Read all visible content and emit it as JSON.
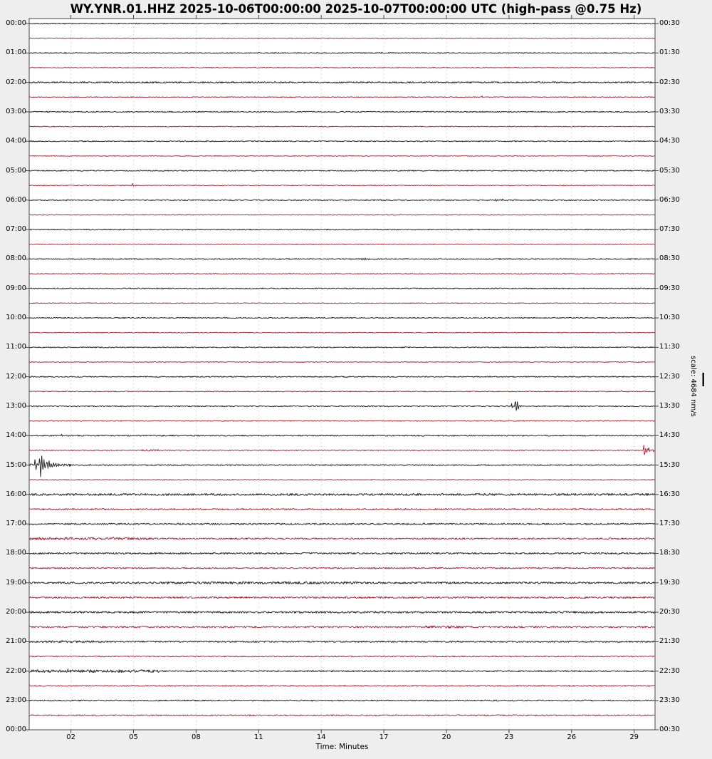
{
  "title": "WY.YNR.01.HHZ 2025-10-06T00:00:00 2025-10-07T00:00:00 UTC (high-pass @0.75 Hz)",
  "xlabel": "Time: Minutes",
  "scale_label": "scale: 4684 nm/s",
  "background": "#eeeeee",
  "plot_bg": "#ffffff",
  "border_color": "#454545",
  "grid_color": "#d4d4d4",
  "trace_colors": {
    "black": "#2a2a2a",
    "red": "#a12335"
  },
  "x_ticks": [
    "02",
    "05",
    "08",
    "11",
    "14",
    "17",
    "20",
    "23",
    "26",
    "29"
  ],
  "left_time_labels": [
    "00:00",
    "01:00",
    "02:00",
    "03:00",
    "04:00",
    "05:00",
    "06:00",
    "07:00",
    "08:00",
    "09:00",
    "10:00",
    "11:00",
    "12:00",
    "13:00",
    "14:00",
    "15:00",
    "16:00",
    "17:00",
    "18:00",
    "19:00",
    "20:00",
    "21:00",
    "22:00",
    "23:00",
    "00:00"
  ],
  "right_time_labels": [
    "00:30",
    "01:30",
    "02:30",
    "03:30",
    "04:30",
    "05:30",
    "06:30",
    "07:30",
    "08:30",
    "09:30",
    "10:30",
    "11:30",
    "12:30",
    "13:30",
    "14:30",
    "15:30",
    "16:30",
    "17:30",
    "18:30",
    "19:30",
    "20:30",
    "21:30",
    "22:30",
    "23:30",
    "00:30"
  ],
  "chart_data": {
    "type": "line",
    "kind": "helicorder-dayplot",
    "station": "WY.YNR.01.HHZ",
    "time_start": "2025-10-06T00:00:00",
    "time_end": "2025-10-07T00:00:00",
    "filter": "high-pass @0.75 Hz",
    "scale_nm_per_s": 4684,
    "minutes_per_line": 30,
    "x_range_minutes": [
      0,
      30
    ],
    "grid": "vertical-dashed",
    "rows": [
      {
        "start": "00:00",
        "color": "black",
        "noise": 0.7,
        "events": []
      },
      {
        "start": "00:30",
        "color": "red",
        "noise": 0.5,
        "events": []
      },
      {
        "start": "01:00",
        "color": "black",
        "noise": 0.7,
        "events": [
          {
            "t": 16.9,
            "a": 2.2
          }
        ]
      },
      {
        "start": "01:30",
        "color": "red",
        "noise": 0.55,
        "events": [
          {
            "t": 26.2,
            "a": 1.2
          }
        ]
      },
      {
        "start": "02:00",
        "color": "black",
        "noise": 1.0,
        "events": []
      },
      {
        "start": "02:30",
        "color": "red",
        "noise": 0.55,
        "events": [
          {
            "t": 21.7,
            "a": 2.2
          }
        ]
      },
      {
        "start": "03:00",
        "color": "black",
        "noise": 0.75,
        "events": []
      },
      {
        "start": "03:30",
        "color": "red",
        "noise": 0.6,
        "events": []
      },
      {
        "start": "04:00",
        "color": "black",
        "noise": 0.7,
        "events": []
      },
      {
        "start": "04:30",
        "color": "red",
        "noise": 0.5,
        "events": []
      },
      {
        "start": "05:00",
        "color": "black",
        "noise": 0.75,
        "events": [
          {
            "t": 28.6,
            "a": 1.6
          }
        ]
      },
      {
        "start": "05:30",
        "color": "red",
        "noise": 0.55,
        "events": [
          {
            "t": 4.95,
            "a": 5.5
          }
        ]
      },
      {
        "start": "06:00",
        "color": "black",
        "noise": 0.75,
        "events": [
          {
            "t": 22.35,
            "a": 4.5
          },
          {
            "t": 22.7,
            "a": 3.5
          }
        ]
      },
      {
        "start": "06:30",
        "color": "red",
        "noise": 0.55,
        "events": []
      },
      {
        "start": "07:00",
        "color": "black",
        "noise": 0.7,
        "events": []
      },
      {
        "start": "07:30",
        "color": "red",
        "noise": 0.55,
        "events": []
      },
      {
        "start": "08:00",
        "color": "black",
        "noise": 0.75,
        "events": [
          {
            "t": 5.3,
            "a": 1.2
          },
          {
            "t": 16.0,
            "a": 2.2,
            "r": 0.15,
            "d": 0.25
          }
        ]
      },
      {
        "start": "08:30",
        "color": "red",
        "noise": 0.55,
        "events": []
      },
      {
        "start": "09:00",
        "color": "black",
        "noise": 0.7,
        "events": []
      },
      {
        "start": "09:30",
        "color": "red",
        "noise": 0.55,
        "events": []
      },
      {
        "start": "10:00",
        "color": "black",
        "noise": 0.7,
        "events": []
      },
      {
        "start": "10:30",
        "color": "red",
        "noise": 0.55,
        "events": [
          {
            "t": 22.2,
            "a": 2.0
          },
          {
            "t": 22.65,
            "a": 1.6
          }
        ]
      },
      {
        "start": "11:00",
        "color": "black",
        "noise": 0.7,
        "events": []
      },
      {
        "start": "11:30",
        "color": "red",
        "noise": 0.55,
        "events": []
      },
      {
        "start": "12:00",
        "color": "black",
        "noise": 0.75,
        "events": []
      },
      {
        "start": "12:30",
        "color": "red",
        "noise": 0.6,
        "events": [
          {
            "t": 28.4,
            "a": 2.2
          }
        ]
      },
      {
        "start": "13:00",
        "color": "black",
        "noise": 0.75,
        "events": [
          {
            "t": 22.9,
            "a": 2.0
          },
          {
            "t": 23.12,
            "a": 5.0,
            "d": 0.06
          },
          {
            "t": 23.3,
            "a": 15.0,
            "d": 0.12
          }
        ]
      },
      {
        "start": "13:30",
        "color": "red",
        "noise": 0.6,
        "events": [
          {
            "t": 22.15,
            "a": 2.6
          }
        ]
      },
      {
        "start": "14:00",
        "color": "black",
        "noise": 0.8,
        "events": [
          {
            "t": 1.55,
            "a": 3.2
          }
        ]
      },
      {
        "start": "14:30",
        "color": "red",
        "noise": 0.6,
        "noise_spans": [
          [
            5.4,
            6.2,
            1.6
          ]
        ],
        "events": [
          {
            "t": 29.45,
            "a": 13.0,
            "d": 0.1
          },
          {
            "t": 29.7,
            "a": 6.0,
            "d": 0.05
          },
          {
            "t": 29.88,
            "a": 5.0,
            "d": 0.04
          }
        ]
      },
      {
        "start": "15:00",
        "color": "black",
        "noise": 0.8,
        "noise_spans": [
          [
            0,
            2,
            1.5
          ]
        ],
        "events": [
          {
            "t": 0.28,
            "a": 9.0,
            "d": 0.08
          },
          {
            "t": 0.5,
            "a": 20.0,
            "d": 0.18
          },
          {
            "t": 0.85,
            "a": 9.0,
            "d": 0.35
          }
        ]
      },
      {
        "start": "15:30",
        "color": "red",
        "noise": 0.6,
        "events": []
      },
      {
        "start": "16:00",
        "color": "black",
        "noise": 1.4,
        "events": []
      },
      {
        "start": "16:30",
        "color": "red",
        "noise": 1.0,
        "events": []
      },
      {
        "start": "17:00",
        "color": "black",
        "noise": 1.0,
        "events": []
      },
      {
        "start": "17:30",
        "color": "red",
        "noise": 1.1,
        "noise_spans": [
          [
            0,
            6,
            1.7
          ]
        ],
        "events": [
          {
            "t": 4.05,
            "a": 2.5
          }
        ]
      },
      {
        "start": "18:00",
        "color": "black",
        "noise": 1.1,
        "events": []
      },
      {
        "start": "18:30",
        "color": "red",
        "noise": 1.0,
        "events": []
      },
      {
        "start": "19:00",
        "color": "black",
        "noise": 1.3,
        "noise_spans": [
          [
            6.5,
            16,
            1.7
          ]
        ],
        "events": []
      },
      {
        "start": "19:30",
        "color": "red",
        "noise": 1.2,
        "events": [
          {
            "t": 17.1,
            "a": 1.8
          }
        ]
      },
      {
        "start": "20:00",
        "color": "black",
        "noise": 1.3,
        "events": []
      },
      {
        "start": "20:30",
        "color": "red",
        "noise": 1.1,
        "noise_spans": [
          [
            19,
            21,
            1.7
          ]
        ],
        "events": []
      },
      {
        "start": "21:00",
        "color": "black",
        "noise": 1.0,
        "noise_spans": [
          [
            0.5,
            3.5,
            1.5
          ]
        ],
        "events": []
      },
      {
        "start": "21:30",
        "color": "red",
        "noise": 0.8,
        "events": []
      },
      {
        "start": "22:00",
        "color": "black",
        "noise": 0.9,
        "noise_spans": [
          [
            0,
            6.2,
            1.9
          ]
        ],
        "events": [
          {
            "t": 1.85,
            "a": 2.8
          }
        ]
      },
      {
        "start": "22:30",
        "color": "red",
        "noise": 0.8,
        "events": []
      },
      {
        "start": "23:00",
        "color": "black",
        "noise": 0.85,
        "events": []
      },
      {
        "start": "23:30",
        "color": "red",
        "noise": 0.8,
        "events": [
          {
            "t": 19.1,
            "a": 2.6
          },
          {
            "t": 27.3,
            "a": 1.6
          }
        ]
      }
    ]
  }
}
